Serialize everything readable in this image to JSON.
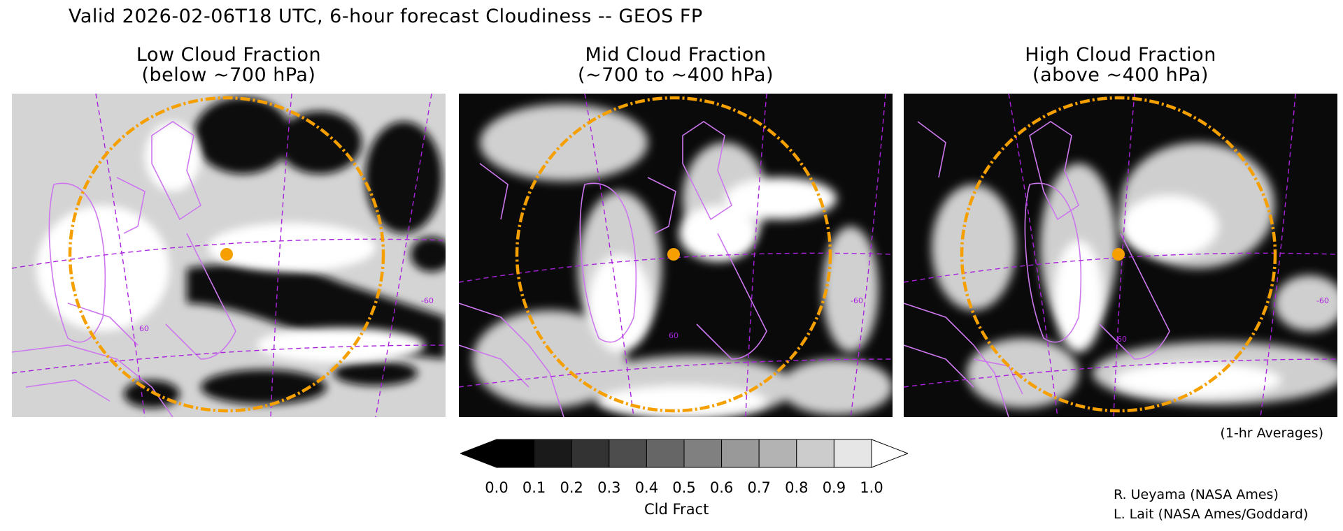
{
  "title": "Valid 2026-02-06T18 UTC, 6-hour forecast Cloudiness -- GEOS FP",
  "panels": [
    {
      "title_line1": "Low Cloud Fraction",
      "title_line2": "(below ~700 hPa)"
    },
    {
      "title_line1": "Mid Cloud Fraction",
      "title_line2": "(~700 to ~400 hPa)"
    },
    {
      "title_line1": "High Cloud Fraction",
      "title_line2": "(above ~400 hPa)"
    }
  ],
  "averages_note": "(1-hr Averages)",
  "colorbar": {
    "title": "Cld Fract",
    "labels": [
      "0.0",
      "0.1",
      "0.2",
      "0.3",
      "0.4",
      "0.5",
      "0.6",
      "0.7",
      "0.8",
      "0.9",
      "1.0"
    ],
    "colors": [
      "#000000",
      "#1a1a1a",
      "#333333",
      "#4d4d4d",
      "#666666",
      "#808080",
      "#999999",
      "#b3b3b3",
      "#cccccc",
      "#e6e6e6"
    ]
  },
  "credits": [
    "R. Ueyama (NASA Ames)",
    "L. Lait (NASA Ames/Goddard)"
  ],
  "map_colors": {
    "coastline": "#cc77ee",
    "gridline": "#aa22dd",
    "range_ring": "#f5a000",
    "site_marker": "#f5a000"
  },
  "grid_labels": {
    "lat": "60",
    "lon": "-60"
  }
}
